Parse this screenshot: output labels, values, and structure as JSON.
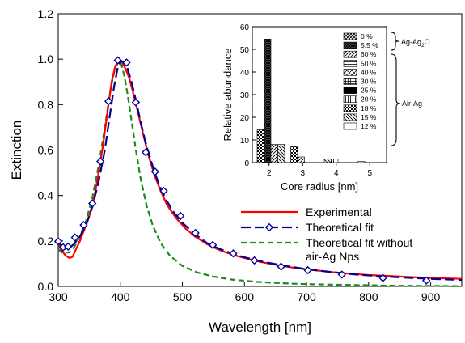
{
  "chart_data": [
    {
      "type": "line",
      "xlabel": "Wavelength [nm]",
      "ylabel": "Extinction",
      "xlim": [
        300,
        950
      ],
      "ylim": [
        0.0,
        1.2
      ],
      "xticks": [
        300,
        400,
        500,
        600,
        700,
        800,
        900
      ],
      "yticks": [
        0.0,
        0.2,
        0.4,
        0.6,
        0.8,
        1.0,
        1.2
      ],
      "legend_position": "center-right",
      "series": [
        {
          "name": "Experimental",
          "color": "#ff0000",
          "style": "solid",
          "x": [
            300,
            305,
            312,
            318,
            323,
            328,
            335,
            342,
            350,
            358,
            365,
            372,
            380,
            386,
            392,
            398,
            402,
            408,
            414,
            420,
            428,
            436,
            445,
            455,
            465,
            475,
            490,
            505,
            520,
            540,
            560,
            580,
            600,
            625,
            650,
            680,
            710,
            740,
            770,
            800,
            850,
            900,
            950
          ],
          "y": [
            0.19,
            0.16,
            0.135,
            0.125,
            0.13,
            0.16,
            0.2,
            0.25,
            0.31,
            0.39,
            0.5,
            0.62,
            0.78,
            0.9,
            0.97,
            0.995,
            0.99,
            0.96,
            0.92,
            0.86,
            0.77,
            0.68,
            0.58,
            0.49,
            0.42,
            0.36,
            0.3,
            0.255,
            0.22,
            0.185,
            0.16,
            0.14,
            0.125,
            0.108,
            0.095,
            0.082,
            0.072,
            0.063,
            0.056,
            0.05,
            0.043,
            0.037,
            0.033
          ]
        },
        {
          "name": "Theoretical fit",
          "color": "#000099",
          "style": "dashed",
          "marker": "diamond",
          "x": [
            300,
            305,
            310,
            318,
            325,
            335,
            345,
            355,
            365,
            375,
            383,
            390,
            396,
            401,
            406,
            411,
            418,
            425,
            433,
            442,
            452,
            462,
            472,
            485,
            500,
            520,
            540,
            560,
            580,
            600,
            630,
            660,
            700,
            740,
            780,
            820,
            860,
            900,
            950
          ],
          "y": [
            0.195,
            0.18,
            0.172,
            0.17,
            0.185,
            0.22,
            0.27,
            0.35,
            0.46,
            0.6,
            0.75,
            0.88,
            0.965,
            0.99,
            0.99,
            0.965,
            0.9,
            0.82,
            0.72,
            0.62,
            0.53,
            0.45,
            0.39,
            0.33,
            0.28,
            0.23,
            0.19,
            0.165,
            0.145,
            0.128,
            0.108,
            0.093,
            0.076,
            0.063,
            0.052,
            0.044,
            0.038,
            0.033,
            0.028
          ],
          "markers_x": [
            300,
            308,
            316,
            327,
            341,
            355,
            368,
            381,
            396,
            410,
            425,
            441,
            456,
            470,
            497,
            521,
            549,
            582,
            616,
            659,
            702,
            757,
            823,
            893
          ],
          "markers_y": [
            0.198,
            0.172,
            0.175,
            0.215,
            0.27,
            0.365,
            0.55,
            0.815,
            0.995,
            0.985,
            0.81,
            0.59,
            0.505,
            0.42,
            0.31,
            0.235,
            0.182,
            0.145,
            0.114,
            0.087,
            0.071,
            0.052,
            0.037,
            0.026
          ]
        },
        {
          "name": "Theoretical fit without air-Ag Nps",
          "legend_lines": [
            "Theoretical fit without",
            "air-Ag Nps"
          ],
          "color": "#1a8a1a",
          "style": "dashed",
          "x": [
            300,
            305,
            310,
            318,
            325,
            335,
            345,
            355,
            365,
            375,
            385,
            392,
            398,
            402,
            407,
            412,
            418,
            425,
            433,
            442,
            452,
            465,
            480,
            500,
            525,
            550,
            580,
            620,
            660,
            700,
            750,
            800,
            850,
            900,
            950
          ],
          "y": [
            0.165,
            0.15,
            0.148,
            0.15,
            0.17,
            0.22,
            0.29,
            0.39,
            0.53,
            0.7,
            0.88,
            0.965,
            0.99,
            0.975,
            0.92,
            0.84,
            0.73,
            0.6,
            0.47,
            0.36,
            0.27,
            0.19,
            0.135,
            0.09,
            0.06,
            0.043,
            0.03,
            0.02,
            0.014,
            0.01,
            0.007,
            0.005,
            0.003,
            0.002,
            0.001
          ]
        }
      ]
    },
    {
      "type": "bar",
      "xlabel": "Core radius [nm]",
      "ylabel": "Relative abundance",
      "ylim": [
        0,
        60
      ],
      "yticks": [
        0,
        10,
        20,
        30,
        40,
        50,
        60
      ],
      "categories": [
        "2",
        "3",
        "4",
        "5"
      ],
      "legend_position": "right",
      "group_labels": {
        "ag_ag2o": {
          "main": "Ag-Ag",
          "sub": "2",
          "tail": "O"
        },
        "air_ag": "Air-Ag"
      },
      "series": [
        {
          "name": "0 %",
          "values": [
            0,
            0,
            0,
            0
          ]
        },
        {
          "name": "5.5 %",
          "values": [
            54.5,
            0,
            0,
            0
          ]
        },
        {
          "name": "60 %",
          "values": [
            8,
            2.5,
            0,
            0
          ]
        },
        {
          "name": "50 %",
          "values": [
            0,
            0,
            0,
            0
          ]
        },
        {
          "name": "40 %",
          "values": [
            0,
            0,
            0,
            0
          ]
        },
        {
          "name": "30 %",
          "values": [
            0,
            0,
            0,
            0
          ]
        },
        {
          "name": "25 %",
          "values": [
            0,
            0,
            0,
            0
          ]
        },
        {
          "name": "20 %",
          "values": [
            0,
            0,
            1.6,
            0
          ]
        },
        {
          "name": "18 %",
          "values": [
            14.5,
            7,
            0,
            0
          ]
        },
        {
          "name": "15 %",
          "values": [
            8,
            0,
            1.6,
            0
          ]
        },
        {
          "name": "12 %",
          "values": [
            0,
            0,
            0,
            0.5
          ]
        }
      ]
    }
  ]
}
